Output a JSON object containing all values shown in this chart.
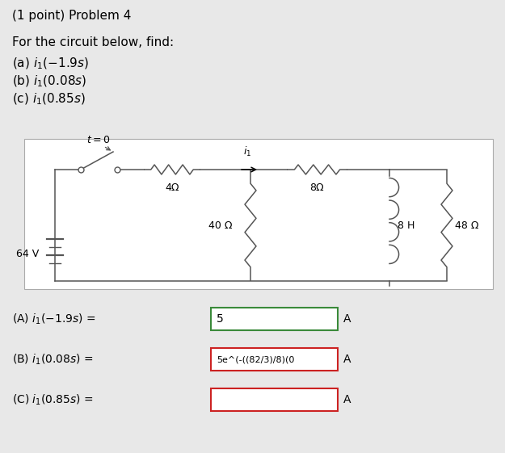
{
  "background_color": "#e8e8e8",
  "white_box_color": "#ffffff",
  "title_text": "(1 point) Problem 4",
  "problem_text": "For the circuit below, find:",
  "part_a_text": "(a) $i_1(-1.9s)$",
  "part_b_text": "(b) $i_1(0.08s)$",
  "part_c_text": "(c) $i_1(0.85s)$",
  "answer_a_label": "(A) $i_1(-1.9s)$ =",
  "answer_b_label": "(B) $i_1(0.08s)$ =",
  "answer_c_label": "(C) $i_1(0.85s)$ =",
  "answer_a_value": "5",
  "answer_b_value": "5e^(-((82/3)/8)(0",
  "answer_a_box_color": "#3a8a3a",
  "answer_b_box_color": "#cc2222",
  "answer_c_box_color": "#cc2222",
  "unit_a": "A",
  "unit_b": "A",
  "unit_c": "A",
  "resistor_4": "4Ω",
  "resistor_8": "8Ω",
  "resistor_40": "40 Ω",
  "resistor_48": "48 Ω",
  "inductor_8H": "8 H",
  "voltage_64": "64 V"
}
